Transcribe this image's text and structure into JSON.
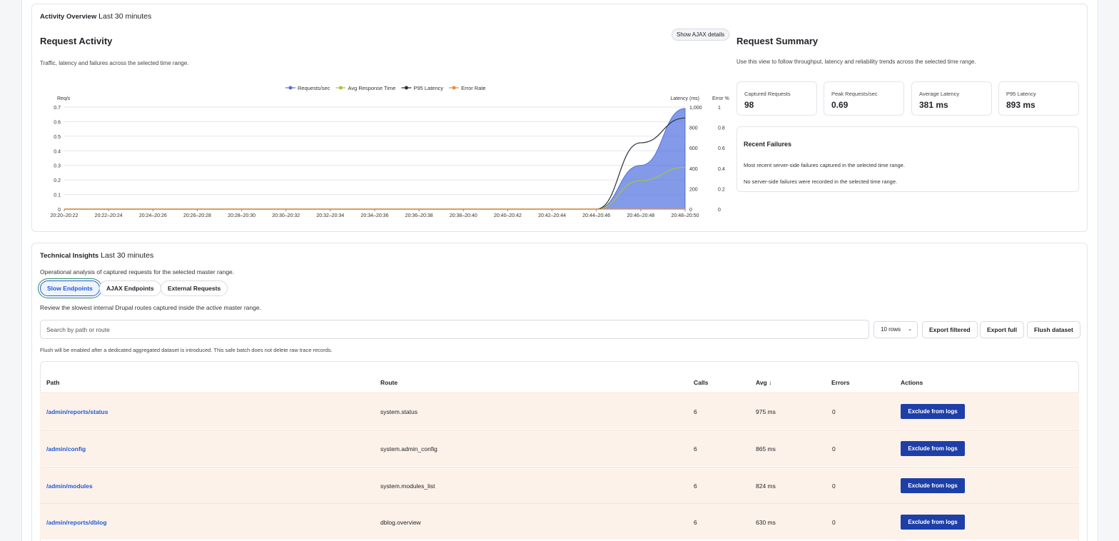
{
  "activity": {
    "label": "Activity Overview",
    "range": "Last 30 minutes",
    "title": "Request Activity",
    "subtitle": "Traffic, latency and failures across the selected time range.",
    "ajax_button": "Show AJAX details"
  },
  "chart_data": {
    "type": "area",
    "legend_position": "top",
    "legend": [
      "Requests/sec",
      "Avg Response Time",
      "P95 Latency",
      "Error Rate"
    ],
    "colors": {
      "requests": "#4f6fe0",
      "avg": "#a8c43a",
      "p95": "#2b2f3a",
      "error": "#f08a3c"
    },
    "y_left_label": "Req/s",
    "y_right_label": "Latency (ms)",
    "y_right2_label": "Error %",
    "y_left_ticks": [
      "0",
      "0.1",
      "0.2",
      "0.3",
      "0.4",
      "0.5",
      "0.6",
      "0.7"
    ],
    "y_right_ticks": [
      "0",
      "200",
      "400",
      "600",
      "800",
      "1,000"
    ],
    "y_right2_ticks": [
      "0",
      "0.2",
      "0.4",
      "0.6",
      "0.8",
      "1"
    ],
    "x_categories": [
      "20:20–20:22",
      "20:22–20:24",
      "20:24–20:26",
      "20:26–20:28",
      "20:28–20:30",
      "20:30–20:32",
      "20:32–20:34",
      "20:34–20:36",
      "20:36–20:38",
      "20:38–20:40",
      "20:40–20:42",
      "20:42–20:44",
      "20:44–20:46",
      "20:46–20:48",
      "20:48–20:50"
    ],
    "ylim_left": [
      0,
      0.7
    ],
    "ylim_right": [
      0,
      1000
    ],
    "ylim_right2": [
      0,
      1
    ],
    "series": [
      {
        "name": "Requests/sec",
        "axis": "left",
        "values": [
          0,
          0,
          0,
          0,
          0,
          0,
          0,
          0,
          0,
          0,
          0,
          0,
          0,
          0.3,
          0.69
        ]
      },
      {
        "name": "Avg Response Time",
        "axis": "right",
        "values": [
          0,
          0,
          0,
          0,
          0,
          0,
          0,
          0,
          0,
          0,
          0,
          0,
          0,
          280,
          410
        ]
      },
      {
        "name": "P95 Latency",
        "axis": "right",
        "values": [
          0,
          0,
          0,
          0,
          0,
          0,
          0,
          0,
          0,
          0,
          0,
          0,
          0,
          650,
          893
        ]
      },
      {
        "name": "Error Rate",
        "axis": "right2",
        "values": [
          0,
          0,
          0,
          0,
          0,
          0,
          0,
          0,
          0,
          0,
          0,
          0,
          0,
          0,
          0
        ]
      }
    ]
  },
  "summary": {
    "title": "Request Summary",
    "subtitle": "Use this view to follow throughput, latency and reliability trends across the selected time range.",
    "stats": [
      {
        "label": "Captured Requests",
        "value": "98"
      },
      {
        "label": "Peak Requests/sec",
        "value": "0.69"
      },
      {
        "label": "Average Latency",
        "value": "381 ms"
      },
      {
        "label": "P95 Latency",
        "value": "893 ms"
      }
    ],
    "failures": {
      "title": "Recent Failures",
      "text1": "Most recent server-side failures captured in the selected time range.",
      "text2": "No server-side failures were recorded in the selected time range."
    }
  },
  "insights": {
    "label": "Technical Insights",
    "range": "Last 30 minutes",
    "subtitle": "Operational analysis of captured requests for the selected master range.",
    "tabs": [
      "Slow Endpoints",
      "AJAX Endpoints",
      "External Requests"
    ],
    "description": "Review the slowest internal Drupal routes captured inside the active master range.",
    "search_placeholder": "Search by path or route",
    "rows_select": "10 rows",
    "export_filtered": "Export filtered",
    "export_full": "Export full",
    "flush": "Flush dataset",
    "flush_note": "Flush will be enabled after a dedicated aggregated dataset is introduced. This safe batch does not delete raw trace records.",
    "columns": [
      "Path",
      "Route",
      "Calls",
      "Avg ↓",
      "Errors",
      "Actions"
    ],
    "rows": [
      {
        "path": "/admin/reports/status",
        "route": "system.status",
        "calls": "6",
        "avg": "975 ms",
        "errors": "0",
        "action": "Exclude from logs"
      },
      {
        "path": "/admin/config",
        "route": "system.admin_config",
        "calls": "6",
        "avg": "865 ms",
        "errors": "0",
        "action": "Exclude from logs"
      },
      {
        "path": "/admin/modules",
        "route": "system.modules_list",
        "calls": "6",
        "avg": "824 ms",
        "errors": "0",
        "action": "Exclude from logs"
      },
      {
        "path": "/admin/reports/dblog",
        "route": "dblog.overview",
        "calls": "6",
        "avg": "630 ms",
        "errors": "0",
        "action": "Exclude from logs"
      }
    ]
  }
}
